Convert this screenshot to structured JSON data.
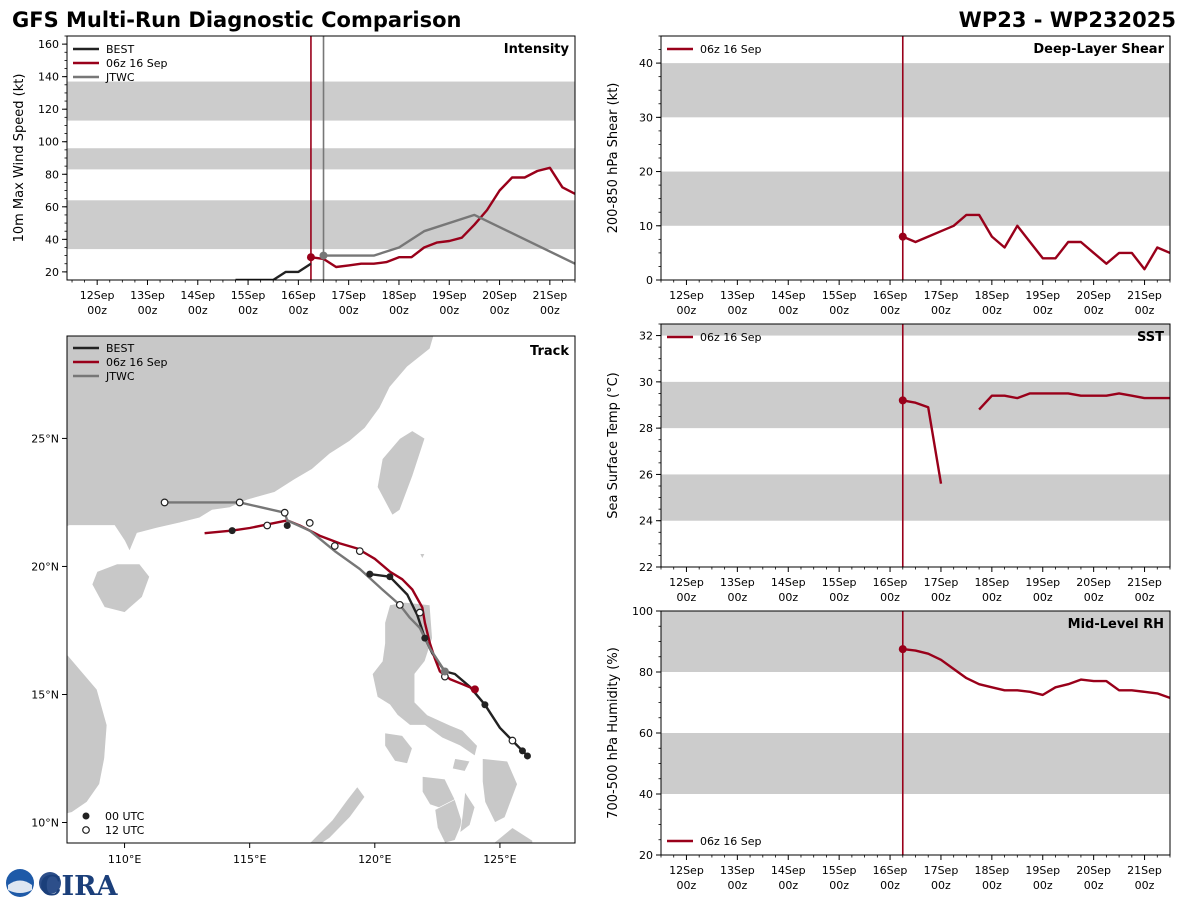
{
  "title_left": "GFS Multi-Run Diagnostic Comparison",
  "title_right": "WP23 - WP232025",
  "logo_text": "CIRA",
  "colors": {
    "best": "#222222",
    "run": "#99001a",
    "jtwc": "#777777",
    "band": "#cccccc",
    "land": "#c8c8c8"
  },
  "time_ticks": [
    "12Sep\n00z",
    "13Sep\n00z",
    "14Sep\n00z",
    "15Sep\n00z",
    "16Sep\n00z",
    "17Sep\n00z",
    "18Sep\n00z",
    "19Sep\n00z",
    "20Sep\n00z",
    "21Sep\n00z"
  ],
  "chart_data": [
    {
      "id": "intensity",
      "type": "line",
      "title": "Intensity",
      "ylabel": "10m Max Wind Speed (kt)",
      "xlim": [
        -0.6,
        9.5
      ],
      "ylim": [
        15,
        165
      ],
      "yticks": [
        20,
        40,
        60,
        80,
        100,
        120,
        140,
        160
      ],
      "bands": [
        [
          34,
          64
        ],
        [
          83,
          96
        ],
        [
          113,
          137
        ]
      ],
      "vlines": [
        {
          "x": 4.25,
          "series": "06z 16 Sep"
        },
        {
          "x": 4.5,
          "series": "JTWC"
        }
      ],
      "legend": [
        "BEST",
        "06z 16 Sep",
        "JTWC"
      ],
      "series": [
        {
          "name": "BEST",
          "x": [
            2.75,
            3.0,
            3.25,
            3.5,
            3.75,
            4.0,
            4.25
          ],
          "y": [
            15,
            15,
            15,
            15,
            20,
            20,
            25
          ]
        },
        {
          "name": "06z 16 Sep",
          "x": [
            4.25,
            4.5,
            4.75,
            5.0,
            5.25,
            5.5,
            5.75,
            6.0,
            6.25,
            6.5,
            6.75,
            7.0,
            7.25,
            7.5,
            7.75,
            8.0,
            8.25,
            8.5,
            8.75,
            9.0,
            9.25,
            9.5
          ],
          "y": [
            29,
            28,
            23,
            24,
            25,
            25,
            26,
            29,
            29,
            35,
            38,
            39,
            41,
            49,
            58,
            70,
            78,
            78,
            82,
            84,
            72,
            68
          ]
        },
        {
          "name": "JTWC",
          "x": [
            4.5,
            5.0,
            5.5,
            6.0,
            6.5,
            7.5,
            9.5
          ],
          "y": [
            30,
            30,
            30,
            35,
            45,
            55,
            25
          ]
        }
      ],
      "markers": [
        {
          "series": "06z 16 Sep",
          "x": 4.25,
          "y": 29
        },
        {
          "series": "JTWC",
          "x": 4.5,
          "y": 30
        }
      ]
    },
    {
      "id": "shear",
      "type": "line",
      "title": "Deep-Layer Shear",
      "ylabel": "200-850 hPa Shear (kt)",
      "xlim": [
        -0.5,
        9.5
      ],
      "ylim": [
        0,
        45
      ],
      "yticks": [
        0,
        10,
        20,
        30,
        40
      ],
      "bands": [
        [
          10,
          20
        ],
        [
          30,
          40
        ]
      ],
      "vlines": [
        {
          "x": 4.25,
          "series": "06z 16 Sep"
        }
      ],
      "legend": [
        "06z 16 Sep"
      ],
      "series": [
        {
          "name": "06z 16 Sep",
          "x": [
            4.25,
            4.5,
            4.75,
            5.0,
            5.25,
            5.5,
            5.75,
            6.0,
            6.25,
            6.5,
            6.75,
            7.0,
            7.25,
            7.5,
            7.75,
            8.0,
            8.25,
            8.5,
            8.75,
            9.0,
            9.25,
            9.5
          ],
          "y": [
            8,
            7,
            8,
            9,
            10,
            12,
            12,
            8,
            6,
            10,
            7,
            4,
            4,
            7,
            7,
            5,
            3,
            5,
            5,
            2,
            6,
            5
          ]
        }
      ],
      "markers": [
        {
          "series": "06z 16 Sep",
          "x": 4.25,
          "y": 8
        }
      ]
    },
    {
      "id": "sst",
      "type": "line",
      "title": "SST",
      "ylabel": "Sea Surface Temp (°C)",
      "xlim": [
        -0.5,
        9.5
      ],
      "ylim": [
        22,
        32.5
      ],
      "yticks": [
        22,
        24,
        26,
        28,
        30,
        32
      ],
      "bands": [
        [
          24,
          26
        ],
        [
          28,
          30
        ],
        [
          32,
          32.5
        ]
      ],
      "vlines": [
        {
          "x": 4.25,
          "series": "06z 16 Sep"
        }
      ],
      "legend": [
        "06z 16 Sep"
      ],
      "series": [
        {
          "name": "06z 16 Sep",
          "x": [
            4.25,
            4.5,
            4.75,
            5.0
          ],
          "y": [
            29.2,
            29.1,
            28.9,
            25.6
          ]
        },
        {
          "name": "06z 16 Sep",
          "x": [
            5.75,
            6.0,
            6.25,
            6.5,
            6.75,
            7.0,
            7.25,
            7.5,
            7.75,
            8.0,
            8.25,
            8.5,
            8.75,
            9.0,
            9.25,
            9.5
          ],
          "y": [
            28.8,
            29.4,
            29.4,
            29.3,
            29.5,
            29.5,
            29.5,
            29.5,
            29.4,
            29.4,
            29.4,
            29.5,
            29.4,
            29.3,
            29.3,
            29.3
          ]
        }
      ],
      "markers": [
        {
          "series": "06z 16 Sep",
          "x": 4.25,
          "y": 29.2
        }
      ]
    },
    {
      "id": "rh",
      "type": "line",
      "title": "Mid-Level RH",
      "ylabel": "700-500 hPa Humidity (%)",
      "xlim": [
        -0.5,
        9.5
      ],
      "ylim": [
        20,
        100
      ],
      "yticks": [
        20,
        40,
        60,
        80,
        100
      ],
      "bands": [
        [
          40,
          60
        ],
        [
          80,
          100
        ]
      ],
      "vlines": [
        {
          "x": 4.25,
          "series": "06z 16 Sep"
        }
      ],
      "legend": [
        "06z 16 Sep"
      ],
      "series": [
        {
          "name": "06z 16 Sep",
          "x": [
            4.25,
            4.5,
            4.75,
            5.0,
            5.25,
            5.5,
            5.75,
            6.0,
            6.25,
            6.5,
            6.75,
            7.0,
            7.25,
            7.5,
            7.75,
            8.0,
            8.25,
            8.5,
            8.75,
            9.0,
            9.25,
            9.5
          ],
          "y": [
            87.5,
            87,
            86,
            84,
            81,
            78,
            76,
            75,
            74,
            74,
            73.5,
            72.5,
            75,
            76,
            77.5,
            77,
            77,
            74,
            74,
            73.5,
            73,
            71.5
          ]
        }
      ],
      "markers": [
        {
          "series": "06z 16 Sep",
          "x": 4.25,
          "y": 87.5
        }
      ]
    },
    {
      "id": "track",
      "type": "scatter",
      "title": "Track",
      "xlim": [
        107.7,
        128
      ],
      "ylim": [
        9.2,
        29
      ],
      "xticks": [
        110,
        115,
        120,
        125
      ],
      "xtick_labels": [
        "110°E",
        "115°E",
        "120°E",
        "125°E"
      ],
      "yticks": [
        10,
        15,
        20,
        25
      ],
      "ytick_labels": [
        "10°N",
        "15°N",
        "20°N",
        "25°N"
      ],
      "legend": [
        "BEST",
        "06z 16 Sep",
        "JTWC"
      ],
      "marker_legend": [
        "00 UTC",
        "12 UTC"
      ],
      "series": [
        {
          "name": "BEST",
          "lon": [
            126.1,
            125.9,
            125.5,
            125.0,
            124.4,
            123.8,
            123.2,
            122.8,
            122.3,
            122.0,
            121.7,
            121.3,
            120.6,
            119.8
          ],
          "lat": [
            12.6,
            12.8,
            13.2,
            13.7,
            14.6,
            15.3,
            15.8,
            15.9,
            16.6,
            17.2,
            18.1,
            18.9,
            19.6,
            19.7
          ]
        },
        {
          "name": "06z 16 Sep",
          "lon": [
            124.0,
            123.5,
            123.0,
            122.6,
            122.4,
            122.2,
            122.0,
            121.9,
            121.5,
            121.1,
            120.6,
            120.0,
            119.3,
            118.6,
            117.8,
            117.0,
            116.5,
            116.0,
            115.0,
            114.3,
            113.2
          ],
          "lat": [
            15.2,
            15.4,
            15.6,
            15.9,
            16.4,
            17.0,
            17.8,
            18.4,
            19.1,
            19.5,
            19.8,
            20.3,
            20.7,
            20.9,
            21.2,
            21.6,
            21.8,
            21.7,
            21.5,
            21.4,
            21.3
          ]
        },
        {
          "name": "JTWC",
          "lon": [
            122.8,
            122.2,
            121.8,
            121.4,
            121.0,
            120.3,
            119.4,
            118.4,
            117.4,
            116.5,
            116.4,
            115.5,
            114.6,
            113.0,
            111.6
          ],
          "lat": [
            15.9,
            16.8,
            17.6,
            18.0,
            18.5,
            19.1,
            19.9,
            20.6,
            21.4,
            21.8,
            22.1,
            22.3,
            22.5,
            22.5,
            22.5
          ]
        }
      ],
      "points_00utc": [
        {
          "lon": 126.1,
          "lat": 12.6
        },
        {
          "lon": 125.9,
          "lat": 12.8
        },
        {
          "lon": 124.4,
          "lat": 14.6
        },
        {
          "lon": 122.0,
          "lat": 17.2
        },
        {
          "lon": 120.6,
          "lat": 19.6
        },
        {
          "lon": 119.8,
          "lat": 19.7
        },
        {
          "lon": 116.5,
          "lat": 21.6
        },
        {
          "lon": 114.3,
          "lat": 21.4
        }
      ],
      "points_12utc": [
        {
          "lon": 125.5,
          "lat": 13.2
        },
        {
          "lon": 122.8,
          "lat": 15.7
        },
        {
          "lon": 121.8,
          "lat": 18.2
        },
        {
          "lon": 121.0,
          "lat": 18.5
        },
        {
          "lon": 119.4,
          "lat": 20.6
        },
        {
          "lon": 118.4,
          "lat": 20.8
        },
        {
          "lon": 117.4,
          "lat": 21.7
        },
        {
          "lon": 116.4,
          "lat": 22.1
        },
        {
          "lon": 115.7,
          "lat": 21.6
        },
        {
          "lon": 114.6,
          "lat": 22.5
        },
        {
          "lon": 111.6,
          "lat": 22.5
        }
      ],
      "run_marker": {
        "lon": 124.0,
        "lat": 15.2
      },
      "jtwc_marker": {
        "lon": 122.8,
        "lat": 15.9
      }
    }
  ]
}
